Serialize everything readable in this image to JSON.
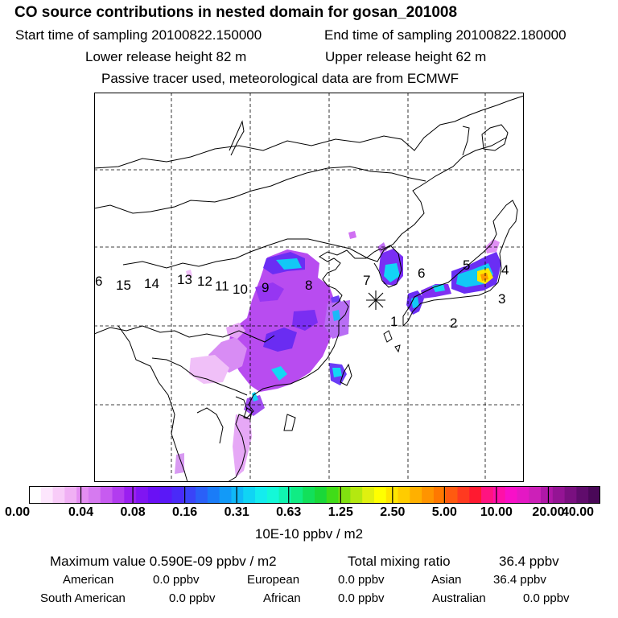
{
  "title": "CO  source contributions in nested domain for gosan_201008",
  "start_time": "Start time of sampling 20100822.150000",
  "end_time": "End time of sampling 20100822.180000",
  "lower_release": "Lower release height   82 m",
  "upper_release": "Upper release height   62 m",
  "tracer_note": "Passive tracer used, meteorological data are from ECMWF",
  "region_labels": [
    "1",
    "2",
    "3",
    "4",
    "5",
    "6",
    "7",
    "8",
    "9",
    "10",
    "11",
    "12",
    "13",
    "14",
    "15",
    "6"
  ],
  "colorbar": {
    "ticks": [
      "0.00",
      "0.04",
      "0.08",
      "0.16",
      "0.31",
      "0.63",
      "1.25",
      "2.50",
      "5.00",
      "10.00",
      "20.00",
      "40.00"
    ],
    "unit": "10E-10 ppbv / m2",
    "colors": [
      "#ffffff",
      "#fde6fd",
      "#f8ccf8",
      "#f0b0f4",
      "#e48ef2",
      "#d67af0",
      "#c75bf0",
      "#b23cef",
      "#9a1ff0",
      "#8015f2",
      "#6a10f5",
      "#5a18f7",
      "#4a2af8",
      "#3a44f8",
      "#2a60f8",
      "#1a7cf8",
      "#129af8",
      "#10b8f8",
      "#10d4f4",
      "#14ecee",
      "#14f8d8",
      "#10f4b0",
      "#10ec84",
      "#12e05a",
      "#1ad838",
      "#40dc18",
      "#80e010",
      "#b4e810",
      "#e0f010",
      "#ffff00",
      "#ffe400",
      "#ffcc00",
      "#ffb000",
      "#ff9400",
      "#ff7800",
      "#ff5a10",
      "#ff3a20",
      "#ff1a30",
      "#ff1480",
      "#ff10a8",
      "#f810c8",
      "#e418c4",
      "#cc20b8",
      "#b018a8",
      "#941494",
      "#7a1080",
      "#600c6c",
      "#4a0858"
    ]
  },
  "max_label": "Maximum value  0.590E-09 ppbv / m2",
  "total_label": "Total mixing ratio",
  "total_value": "36.4 ppbv",
  "regions": [
    {
      "name": "American",
      "value": "0.0 ppbv"
    },
    {
      "name": "European",
      "value": "0.0 ppbv"
    },
    {
      "name": "Asian",
      "value": "36.4 ppbv"
    },
    {
      "name": "South American",
      "value": "0.0 ppbv"
    },
    {
      "name": "African",
      "value": "0.0 ppbv"
    },
    {
      "name": "Australian",
      "value": "0.0 ppbv"
    }
  ]
}
